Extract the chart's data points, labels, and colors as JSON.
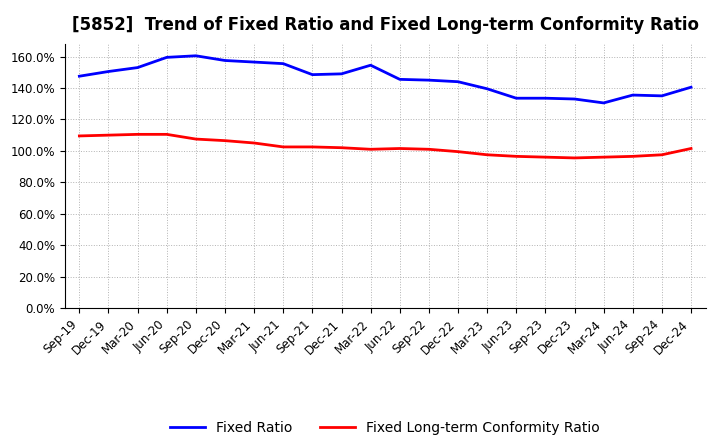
{
  "title": "[5852]  Trend of Fixed Ratio and Fixed Long-term Conformity Ratio",
  "x_labels": [
    "Sep-19",
    "Dec-19",
    "Mar-20",
    "Jun-20",
    "Sep-20",
    "Dec-20",
    "Mar-21",
    "Jun-21",
    "Sep-21",
    "Dec-21",
    "Mar-22",
    "Jun-22",
    "Sep-22",
    "Dec-22",
    "Mar-23",
    "Jun-23",
    "Sep-23",
    "Dec-23",
    "Mar-24",
    "Jun-24",
    "Sep-24",
    "Dec-24"
  ],
  "fixed_ratio": [
    147.5,
    150.5,
    153.0,
    159.5,
    160.5,
    157.5,
    156.5,
    155.5,
    148.5,
    149.0,
    154.5,
    145.5,
    145.0,
    144.0,
    139.5,
    133.5,
    133.5,
    133.0,
    130.5,
    135.5,
    135.0,
    140.5
  ],
  "fixed_lt_ratio": [
    109.5,
    110.0,
    110.5,
    110.5,
    107.5,
    106.5,
    105.0,
    102.5,
    102.5,
    102.0,
    101.0,
    101.5,
    101.0,
    99.5,
    97.5,
    96.5,
    96.0,
    95.5,
    96.0,
    96.5,
    97.5,
    101.5
  ],
  "fixed_ratio_color": "#0000FF",
  "fixed_lt_ratio_color": "#FF0000",
  "background_color": "#FFFFFF",
  "grid_color": "#AAAAAA",
  "ylim": [
    0,
    168
  ],
  "yticks": [
    0,
    20,
    40,
    60,
    80,
    100,
    120,
    140,
    160
  ],
  "legend_fixed_ratio": "Fixed Ratio",
  "legend_fixed_lt_ratio": "Fixed Long-term Conformity Ratio",
  "title_fontsize": 12,
  "axis_fontsize": 8.5,
  "legend_fontsize": 10
}
